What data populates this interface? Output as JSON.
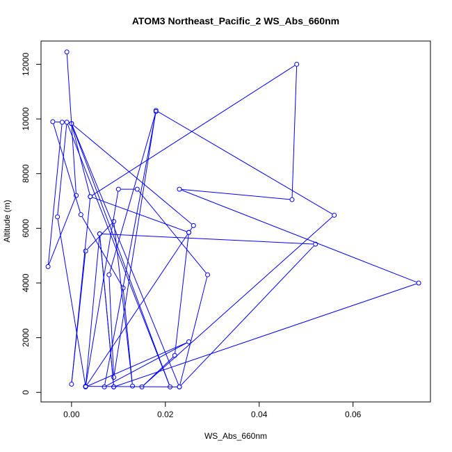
{
  "chart_data": {
    "type": "line",
    "title": "ATOM3 Northeast_Pacific_2 WS_Abs_660nm",
    "xlabel": "WS_Abs_660nm",
    "ylabel": "Altitude (m)",
    "xlim": [
      -0.0065,
      0.0765
    ],
    "ylim": [
      -350,
      12850
    ],
    "xticks": [
      0.0,
      0.02,
      0.04,
      0.06
    ],
    "xtick_labels": [
      "0.00",
      "0.02",
      "0.04",
      "0.06"
    ],
    "yticks": [
      0,
      2000,
      4000,
      6000,
      8000,
      10000,
      12000
    ],
    "ytick_labels": [
      "0",
      "2000",
      "4000",
      "6000",
      "8000",
      "10000",
      "12000"
    ],
    "grid": false,
    "marker": "open-circle",
    "color": "#0000ff",
    "series": [
      {
        "x": [
          -0.001,
          0.001,
          -0.005,
          -0.002,
          -0.004,
          0.002,
          0.011,
          0.013,
          0.009,
          0.003,
          0.0,
          0.004,
          0.025,
          0.003,
          0.025,
          0.007,
          0.018,
          0.008,
          0.009,
          0.018,
          0.056,
          0.015,
          0.022,
          0.025,
          0.026,
          0.0,
          0.021,
          -0.001,
          -0.003,
          0.003,
          0.023,
          0.029,
          0.014,
          0.01,
          0.003,
          0.006,
          0.009,
          0.074,
          0.023,
          0.047,
          0.048,
          0.004,
          0.0,
          0.023,
          0.052,
          0.006,
          0.009
        ],
        "y": [
          12450,
          7200,
          4600,
          9880,
          9900,
          6500,
          3820,
          230,
          6250,
          5170,
          300,
          7160,
          5850,
          200,
          1850,
          200,
          10270,
          4300,
          550,
          10310,
          6480,
          200,
          1350,
          5850,
          6100,
          9830,
          200,
          9880,
          6420,
          220,
          200,
          4300,
          7430,
          7430,
          220,
          5800,
          200,
          4000,
          7430,
          7050,
          12000,
          7160,
          9830,
          200,
          5420,
          5800,
          200
        ]
      }
    ]
  }
}
